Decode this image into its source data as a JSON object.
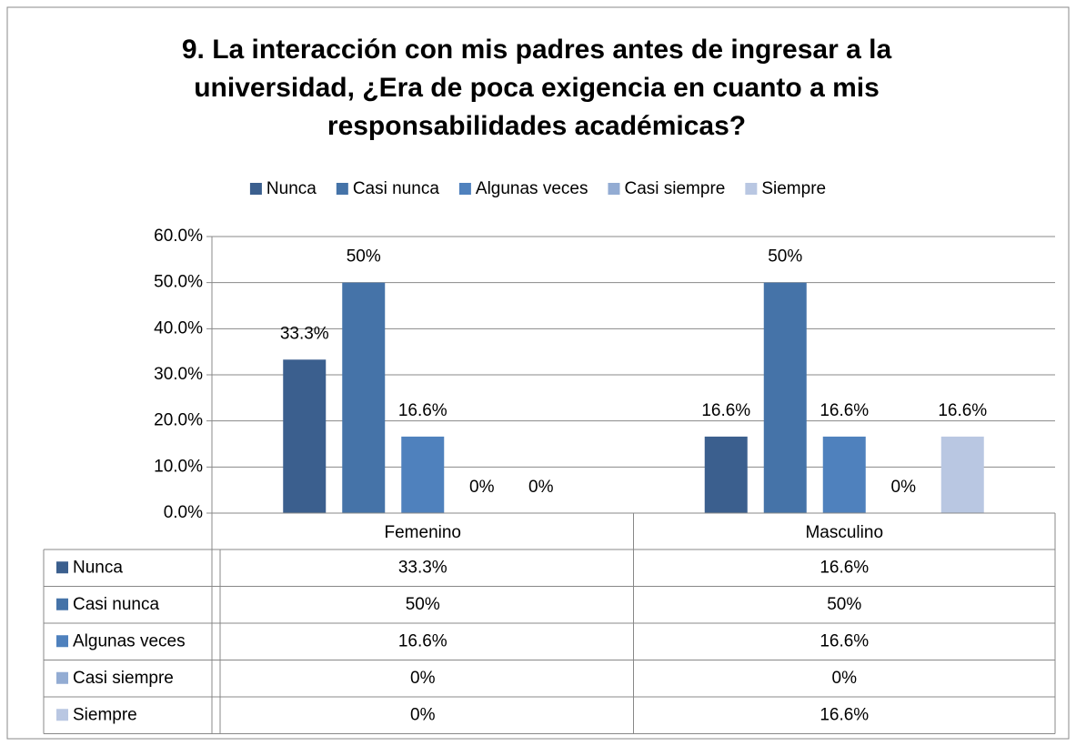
{
  "chart_data": {
    "type": "bar",
    "title": "9. La interacción con mis padres antes de ingresar a la universidad, ¿Era de poca exigencia en cuanto a mis responsabilidades académicas?",
    "categories": [
      "Femenino",
      "Masculino"
    ],
    "series": [
      {
        "name": "Nunca",
        "color": "#3b5f8e",
        "values": [
          33.3,
          16.6
        ],
        "value_labels": [
          "33.3%",
          "16.6%"
        ]
      },
      {
        "name": "Casi nunca",
        "color": "#4573a8",
        "values": [
          50,
          50
        ],
        "value_labels": [
          "50%",
          "50%"
        ]
      },
      {
        "name": "Algunas veces",
        "color": "#4f81bd",
        "values": [
          16.6,
          16.6
        ],
        "value_labels": [
          "16.6%",
          "16.6%"
        ]
      },
      {
        "name": "Casi siempre",
        "color": "#93acd3",
        "values": [
          0,
          0
        ],
        "value_labels": [
          "0%",
          "0%"
        ]
      },
      {
        "name": "Siempre",
        "color": "#b9c7e2",
        "values": [
          0,
          16.6
        ],
        "value_labels": [
          "0%",
          "16.6%"
        ]
      }
    ],
    "ylim": [
      0,
      60
    ],
    "yticks": [
      {
        "value": 0,
        "label": "0.0%"
      },
      {
        "value": 10,
        "label": "10.0%"
      },
      {
        "value": 20,
        "label": "20.0%"
      },
      {
        "value": 30,
        "label": "30.0%"
      },
      {
        "value": 40,
        "label": "40.0%"
      },
      {
        "value": 50,
        "label": "50.0%"
      },
      {
        "value": 60,
        "label": "60.0%"
      }
    ],
    "grid": true,
    "legend": "top",
    "data_table": true
  }
}
